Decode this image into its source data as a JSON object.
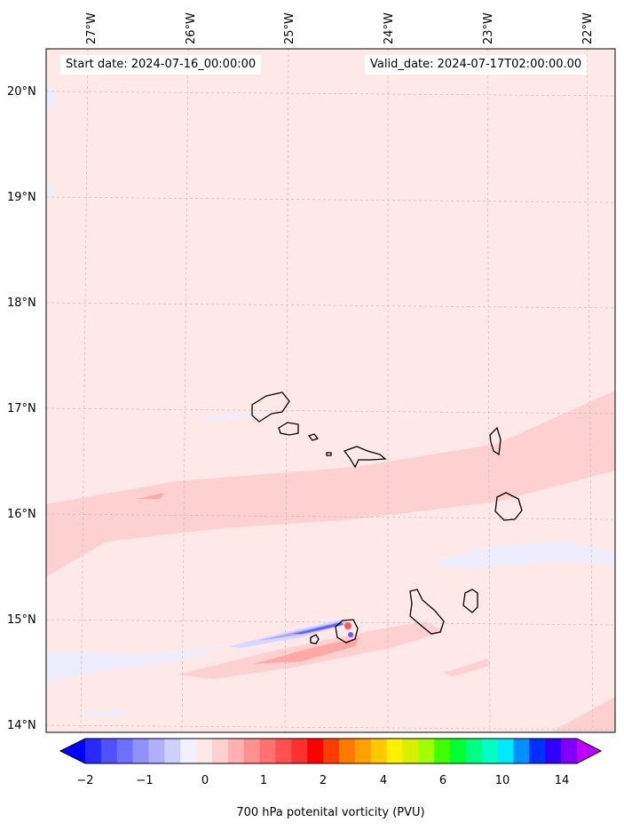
{
  "map": {
    "start_date": "Start date: 2024-07-16_00:00:00",
    "valid_date": "Valid_date: 2024-07-17T02:00:00.00",
    "longitude_labels": [
      "27°W",
      "26°W",
      "25°W",
      "24°W",
      "23°W",
      "22°W"
    ],
    "latitude_labels": [
      "20°N",
      "19°N",
      "18°N",
      "17°N",
      "16°N",
      "15°N",
      "14°N"
    ],
    "background_color": "#ffe8e8",
    "field_colors": {
      "light_pink": "#ffd0d0",
      "mid_pink": "#ffa8a8",
      "red": "#ff5a5a",
      "light_blue": "#e8e8ff",
      "mid_blue": "#9a9aff",
      "blue": "#4040ff"
    }
  },
  "colorbar": {
    "title": "700 hPa potenital vorticity (PVU)",
    "ticks": [
      "−2",
      "−1",
      "0",
      "1",
      "2",
      "4",
      "6",
      "10",
      "14"
    ],
    "colors": [
      "#0000ff",
      "#2828ff",
      "#5050ff",
      "#7070ff",
      "#9090ff",
      "#b0b0ff",
      "#d0d0ff",
      "#f0f0ff",
      "#ffe8e8",
      "#ffd0d0",
      "#ffb0b0",
      "#ff9090",
      "#ff7070",
      "#ff5050",
      "#ff3030",
      "#ff0000",
      "#ff3d00",
      "#ff7a00",
      "#ffa000",
      "#ffc800",
      "#fff000",
      "#d8f000",
      "#a0ff00",
      "#40ff00",
      "#00ff30",
      "#00ff80",
      "#00ffc0",
      "#00e8ff",
      "#0090ff",
      "#0030ff",
      "#3000ff",
      "#8000ff",
      "#c000ff"
    ]
  }
}
